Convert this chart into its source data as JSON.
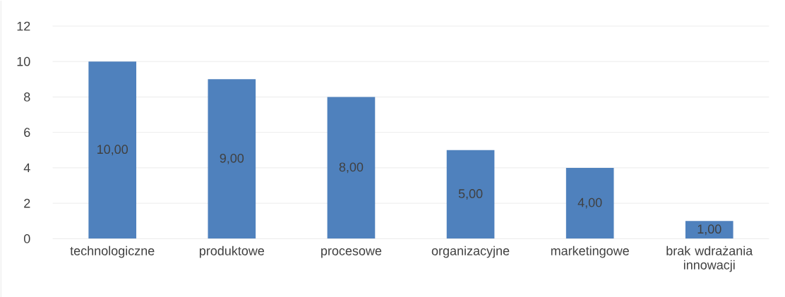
{
  "chart_data": {
    "type": "bar",
    "categories": [
      "technologiczne",
      "produktowe",
      "procesowe",
      "organizacyjne",
      "marketingowe",
      "brak wdrażania innowacji"
    ],
    "values": [
      10,
      9,
      8,
      5,
      4,
      1
    ],
    "value_labels": [
      "10,00",
      "9,00",
      "8,00",
      "5,00",
      "4,00",
      "1,00"
    ],
    "color": "#4f81bd",
    "ylim": [
      0,
      12
    ],
    "yticks": [
      0,
      2,
      4,
      6,
      8,
      10,
      12
    ],
    "grid": "y"
  }
}
